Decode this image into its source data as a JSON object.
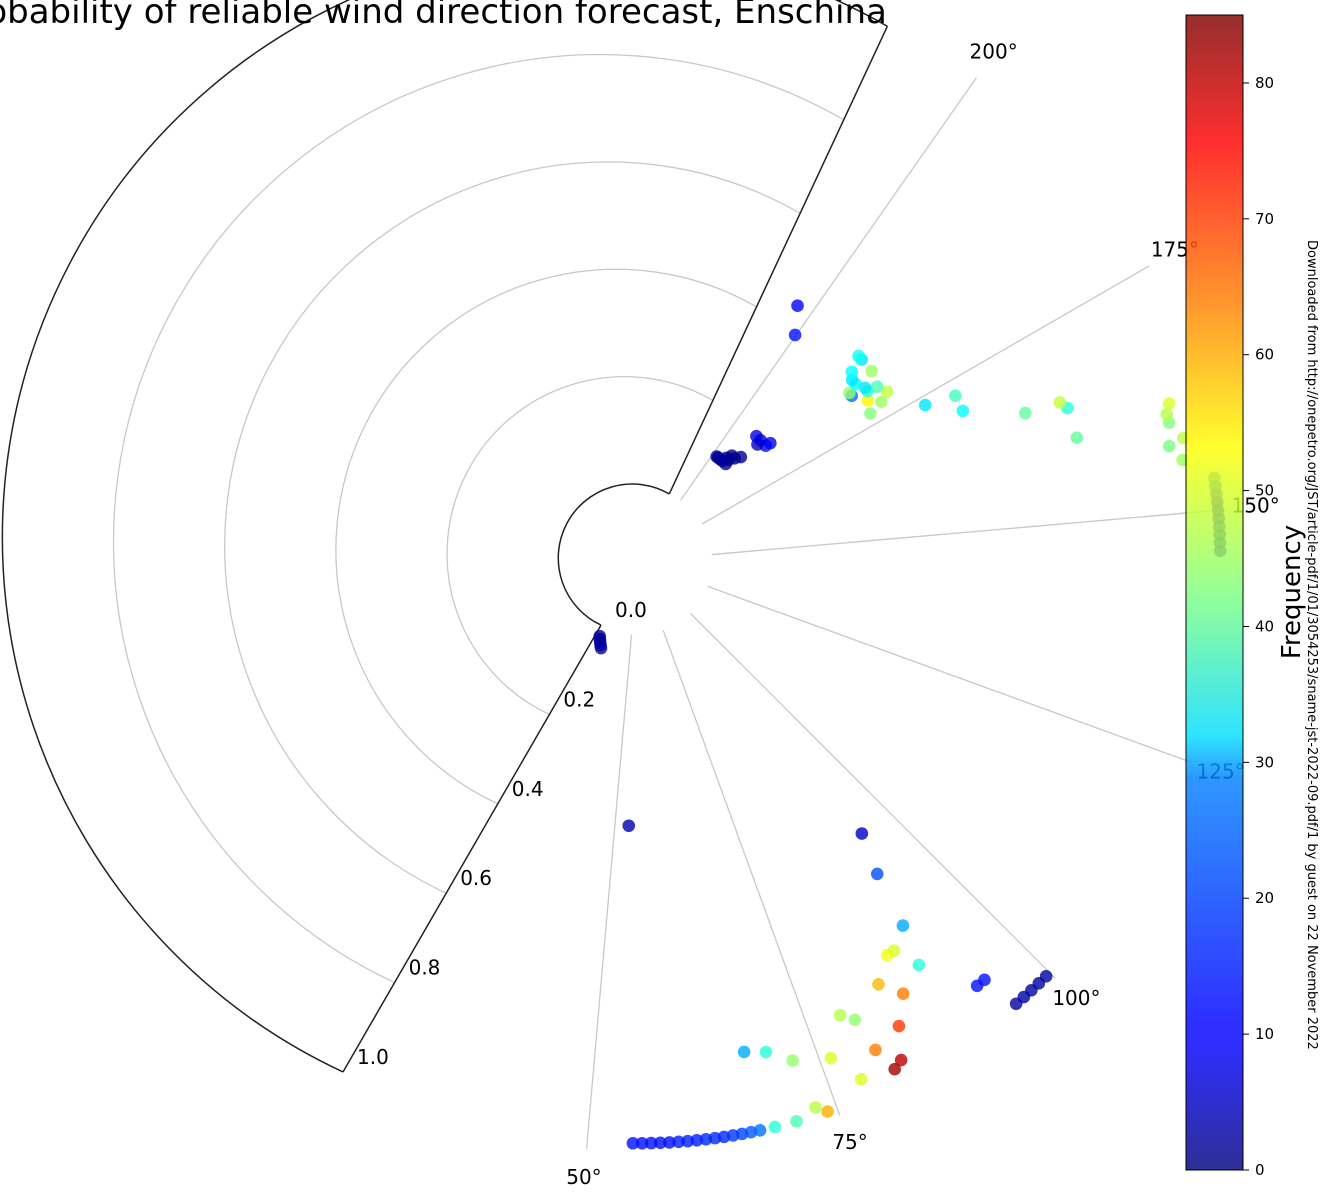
{
  "title": "robability of reliable wind direction forecast, Enschina",
  "watermark": "Downloaded from http://onepetro.org/JST/article-pdf/1/01/3054253/sname-jst-2022-09.pdf/1 by guest on 22 November 2022",
  "chart_data": {
    "type": "scatter",
    "coordinate_system": "polar",
    "theta_unit": "degrees",
    "theta_range": [
      25,
      210
    ],
    "theta_ticks": [
      "50°",
      "75°",
      "100°",
      "125°",
      "150°",
      "175°",
      "200°"
    ],
    "theta_tick_values": [
      50,
      75,
      100,
      125,
      150,
      175,
      200
    ],
    "r_range": [
      0,
      1
    ],
    "r_ticks": [
      "0.0",
      "0.2",
      "0.4",
      "0.6",
      "0.8",
      "1.0"
    ],
    "r_tick_values": [
      0,
      0.2,
      0.4,
      0.6,
      0.8,
      1.0
    ],
    "grid": true,
    "colormap": "jet",
    "colorbar": {
      "label": "Frequency",
      "range": [
        0,
        85
      ],
      "ticks": [
        "0",
        "10",
        "20",
        "30",
        "40",
        "50",
        "60",
        "70",
        "80"
      ],
      "tick_values": [
        0,
        10,
        20,
        30,
        40,
        50,
        60,
        70,
        80
      ]
    },
    "series": [
      {
        "points": [
          {
            "theta": 28,
            "r": 0.02,
            "freq": 2
          },
          {
            "theta": 29,
            "r": 0.025,
            "freq": 2
          },
          {
            "theta": 30,
            "r": 0.03,
            "freq": 2
          },
          {
            "theta": 31,
            "r": 0.035,
            "freq": 3
          },
          {
            "theta": 32,
            "r": 0.04,
            "freq": 3
          },
          {
            "theta": 53,
            "r": 0.37,
            "freq": 4
          },
          {
            "theta": 54.5,
            "r": 0.985,
            "freq": 12
          },
          {
            "theta": 55.4,
            "r": 0.985,
            "freq": 12
          },
          {
            "theta": 56.3,
            "r": 0.985,
            "freq": 12
          },
          {
            "theta": 57.2,
            "r": 0.985,
            "freq": 12
          },
          {
            "theta": 58.1,
            "r": 0.985,
            "freq": 12
          },
          {
            "theta": 59.0,
            "r": 0.985,
            "freq": 13
          },
          {
            "theta": 59.9,
            "r": 0.985,
            "freq": 13
          },
          {
            "theta": 60.8,
            "r": 0.985,
            "freq": 13
          },
          {
            "theta": 61.7,
            "r": 0.985,
            "freq": 14
          },
          {
            "theta": 62.6,
            "r": 0.985,
            "freq": 14
          },
          {
            "theta": 63.5,
            "r": 0.985,
            "freq": 14
          },
          {
            "theta": 64.4,
            "r": 0.985,
            "freq": 15
          },
          {
            "theta": 65.3,
            "r": 0.985,
            "freq": 16
          },
          {
            "theta": 66.2,
            "r": 0.985,
            "freq": 18
          },
          {
            "theta": 67.1,
            "r": 0.985,
            "freq": 20
          },
          {
            "theta": 68.6,
            "r": 0.985,
            "freq": 35
          },
          {
            "theta": 70.8,
            "r": 0.985,
            "freq": 38
          },
          {
            "theta": 73.0,
            "r": 0.97,
            "freq": 47
          },
          {
            "theta": 74.0,
            "r": 0.985,
            "freq": 60
          },
          {
            "theta": 67.2,
            "r": 0.83,
            "freq": 25
          },
          {
            "theta": 69.6,
            "r": 0.84,
            "freq": 35
          },
          {
            "theta": 72.2,
            "r": 0.87,
            "freq": 44
          },
          {
            "theta": 76.2,
            "r": 0.89,
            "freq": 50
          },
          {
            "theta": 78.3,
            "r": 0.95,
            "freq": 50
          },
          {
            "theta": 79.0,
            "r": 0.82,
            "freq": 47
          },
          {
            "theta": 80.3,
            "r": 0.84,
            "freq": 44
          },
          {
            "theta": 80.9,
            "r": 0.91,
            "freq": 64
          },
          {
            "theta": 81.8,
            "r": 0.96,
            "freq": 82
          },
          {
            "theta": 82.8,
            "r": 0.95,
            "freq": 80
          },
          {
            "theta": 84.3,
            "r": 0.89,
            "freq": 70
          },
          {
            "theta": 84.6,
            "r": 0.8,
            "freq": 59
          },
          {
            "theta": 86.5,
            "r": 0.84,
            "freq": 64
          },
          {
            "theta": 87.3,
            "r": 0.76,
            "freq": 52
          },
          {
            "theta": 88.3,
            "r": 0.76,
            "freq": 50
          },
          {
            "theta": 89.8,
            "r": 0.81,
            "freq": 35
          },
          {
            "theta": 91.0,
            "r": 0.73,
            "freq": 25
          },
          {
            "theta": 93.6,
            "r": 0.91,
            "freq": 12
          },
          {
            "theta": 94.6,
            "r": 0.91,
            "freq": 12
          },
          {
            "theta": 92.4,
            "r": 0.62,
            "freq": 17
          },
          {
            "theta": 94.4,
            "r": 0.54,
            "freq": 6
          },
          {
            "theta": 95.5,
            "r": 0.985,
            "freq": 3
          },
          {
            "theta": 96.5,
            "r": 0.985,
            "freq": 3
          },
          {
            "theta": 97.5,
            "r": 0.985,
            "freq": 3
          },
          {
            "theta": 98.5,
            "r": 0.985,
            "freq": 3
          },
          {
            "theta": 99.5,
            "r": 0.985,
            "freq": 3
          },
          {
            "theta": 146.0,
            "r": 0.985,
            "freq": 3
          },
          {
            "theta": 146.8,
            "r": 0.985,
            "freq": 4
          },
          {
            "theta": 147.6,
            "r": 0.985,
            "freq": 4
          },
          {
            "theta": 148.4,
            "r": 0.985,
            "freq": 5
          },
          {
            "theta": 149.2,
            "r": 0.985,
            "freq": 6
          },
          {
            "theta": 150.0,
            "r": 0.985,
            "freq": 8
          },
          {
            "theta": 150.8,
            "r": 0.985,
            "freq": 10
          },
          {
            "theta": 151.6,
            "r": 0.985,
            "freq": 14
          },
          {
            "theta": 152.4,
            "r": 0.985,
            "freq": 18
          },
          {
            "theta": 153.2,
            "r": 0.985,
            "freq": 22
          },
          {
            "theta": 155.5,
            "r": 0.93,
            "freq": 45
          },
          {
            "theta": 157.2,
            "r": 0.91,
            "freq": 42
          },
          {
            "theta": 157.7,
            "r": 0.94,
            "freq": 47
          },
          {
            "theta": 159.6,
            "r": 0.92,
            "freq": 43
          },
          {
            "theta": 160.5,
            "r": 0.92,
            "freq": 47
          },
          {
            "theta": 161.5,
            "r": 0.93,
            "freq": 50
          },
          {
            "theta": 160.7,
            "r": 0.74,
            "freq": 40
          },
          {
            "theta": 164.6,
            "r": 0.74,
            "freq": 35
          },
          {
            "theta": 165.6,
            "r": 0.73,
            "freq": 48
          },
          {
            "theta": 165.9,
            "r": 0.66,
            "freq": 40
          },
          {
            "theta": 169.8,
            "r": 0.55,
            "freq": 32
          },
          {
            "theta": 172.5,
            "r": 0.55,
            "freq": 37
          },
          {
            "theta": 173.5,
            "r": 0.49,
            "freq": 30
          },
          {
            "theta": 177.4,
            "r": 0.39,
            "freq": 43
          },
          {
            "theta": 178.2,
            "r": 0.42,
            "freq": 45
          },
          {
            "theta": 179.2,
            "r": 0.44,
            "freq": 48
          },
          {
            "theta": 179.9,
            "r": 0.4,
            "freq": 54
          },
          {
            "theta": 181.1,
            "r": 0.43,
            "freq": 38
          },
          {
            "theta": 181.5,
            "r": 0.41,
            "freq": 35
          },
          {
            "theta": 182.3,
            "r": 0.41,
            "freq": 30
          },
          {
            "theta": 182.7,
            "r": 0.38,
            "freq": 20
          },
          {
            "theta": 183.5,
            "r": 0.38,
            "freq": 44
          },
          {
            "theta": 184.1,
            "r": 0.44,
            "freq": 45
          },
          {
            "theta": 184.1,
            "r": 0.4,
            "freq": 32
          },
          {
            "theta": 185.2,
            "r": 0.4,
            "freq": 30
          },
          {
            "theta": 186.5,
            "r": 0.41,
            "freq": 32
          },
          {
            "theta": 187.0,
            "r": 0.44,
            "freq": 30
          },
          {
            "theta": 187.9,
            "r": 0.44,
            "freq": 33
          },
          {
            "theta": 186.7,
            "r": 0.2,
            "freq": 9
          },
          {
            "theta": 187.1,
            "r": 0.19,
            "freq": 11
          },
          {
            "theta": 189.3,
            "r": 0.18,
            "freq": 5
          },
          {
            "theta": 189.6,
            "r": 0.19,
            "freq": 7
          },
          {
            "theta": 191.5,
            "r": 0.19,
            "freq": 8
          },
          {
            "theta": 190.3,
            "r": 0.14,
            "freq": 1
          },
          {
            "theta": 191.7,
            "r": 0.13,
            "freq": 1
          },
          {
            "theta": 193.3,
            "r": 0.13,
            "freq": 1
          },
          {
            "theta": 192.9,
            "r": 0.11,
            "freq": 1
          },
          {
            "theta": 193.1,
            "r": 0.12,
            "freq": 1
          },
          {
            "theta": 194.4,
            "r": 0.12,
            "freq": 2
          },
          {
            "theta": 195.0,
            "r": 0.11,
            "freq": 2
          },
          {
            "theta": 196.2,
            "r": 0.11,
            "freq": 2
          },
          {
            "theta": 197.2,
            "r": 0.11,
            "freq": 2
          },
          {
            "theta": 198.0,
            "r": 0.11,
            "freq": 2
          },
          {
            "theta": 200.2,
            "r": 0.39,
            "freq": 12
          },
          {
            "theta": 203.0,
            "r": 0.44,
            "freq": 11
          }
        ]
      }
    ]
  }
}
